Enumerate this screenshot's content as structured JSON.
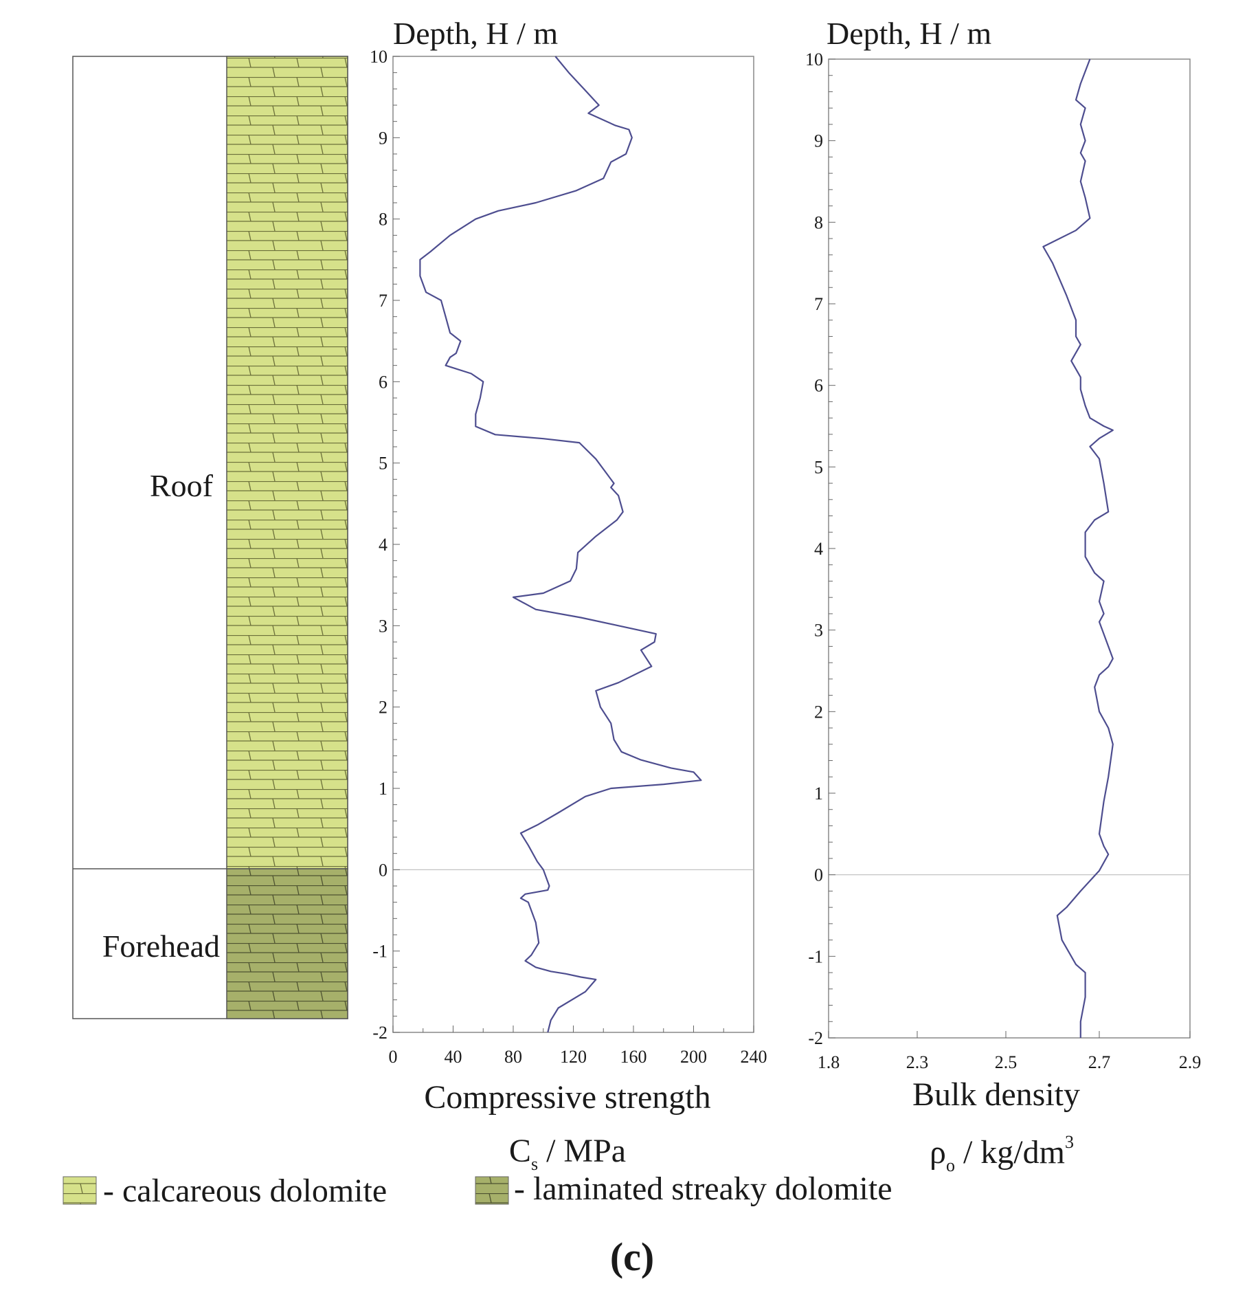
{
  "chart_data": [
    {
      "type": "line",
      "title": "",
      "ylabel": "Depth, H / m",
      "xlabel": "Compressive strength",
      "xlabel_unit": {
        "symbol": "C",
        "subscript": "s",
        "rest": " / MPa"
      },
      "xlim": [
        0,
        240
      ],
      "ylim": [
        -2,
        10
      ],
      "x_ticks": [
        0,
        40,
        80,
        120,
        160,
        200,
        240
      ],
      "y_ticks": [
        -2,
        -1,
        0,
        1,
        2,
        3,
        4,
        5,
        6,
        7,
        8,
        9,
        10
      ],
      "reference_line": 0,
      "color": "#4d4d8f",
      "series": [
        {
          "name": "Compressive strength",
          "points": [
            [
              108,
              10
            ],
            [
              117,
              9.8
            ],
            [
              127,
              9.6
            ],
            [
              137,
              9.4
            ],
            [
              130,
              9.3
            ],
            [
              148,
              9.15
            ],
            [
              157,
              9.1
            ],
            [
              159,
              9.0
            ],
            [
              155,
              8.8
            ],
            [
              145,
              8.7
            ],
            [
              140,
              8.5
            ],
            [
              122,
              8.35
            ],
            [
              95,
              8.2
            ],
            [
              70,
              8.1
            ],
            [
              55,
              8.0
            ],
            [
              38,
              7.8
            ],
            [
              25,
              7.6
            ],
            [
              18,
              7.5
            ],
            [
              18,
              7.3
            ],
            [
              22,
              7.1
            ],
            [
              32,
              7.0
            ],
            [
              35,
              6.8
            ],
            [
              38,
              6.6
            ],
            [
              45,
              6.5
            ],
            [
              42,
              6.35
            ],
            [
              38,
              6.3
            ],
            [
              35,
              6.2
            ],
            [
              52,
              6.1
            ],
            [
              60,
              6.0
            ],
            [
              58,
              5.8
            ],
            [
              55,
              5.6
            ],
            [
              55,
              5.45
            ],
            [
              68,
              5.35
            ],
            [
              100,
              5.3
            ],
            [
              124,
              5.25
            ],
            [
              135,
              5.05
            ],
            [
              143,
              4.85
            ],
            [
              147,
              4.75
            ],
            [
              145,
              4.7
            ],
            [
              150,
              4.6
            ],
            [
              153,
              4.4
            ],
            [
              149,
              4.3
            ],
            [
              135,
              4.1
            ],
            [
              123,
              3.9
            ],
            [
              122,
              3.7
            ],
            [
              118,
              3.55
            ],
            [
              100,
              3.4
            ],
            [
              80,
              3.35
            ],
            [
              95,
              3.2
            ],
            [
              125,
              3.1
            ],
            [
              150,
              3.0
            ],
            [
              175,
              2.9
            ],
            [
              174,
              2.8
            ],
            [
              165,
              2.7
            ],
            [
              172,
              2.5
            ],
            [
              150,
              2.3
            ],
            [
              135,
              2.2
            ],
            [
              138,
              2.0
            ],
            [
              145,
              1.8
            ],
            [
              147,
              1.6
            ],
            [
              152,
              1.45
            ],
            [
              165,
              1.35
            ],
            [
              185,
              1.25
            ],
            [
              200,
              1.2
            ],
            [
              205,
              1.1
            ],
            [
              180,
              1.05
            ],
            [
              145,
              1.0
            ],
            [
              128,
              0.9
            ],
            [
              110,
              0.7
            ],
            [
              96,
              0.55
            ],
            [
              85,
              0.45
            ],
            [
              90,
              0.3
            ],
            [
              96,
              0.1
            ],
            [
              100,
              0
            ],
            [
              104,
              -0.2
            ],
            [
              103,
              -0.25
            ],
            [
              88,
              -0.3
            ],
            [
              85,
              -0.35
            ],
            [
              90,
              -0.4
            ],
            [
              95,
              -0.65
            ],
            [
              97,
              -0.9
            ],
            [
              92,
              -1.05
            ],
            [
              88,
              -1.12
            ],
            [
              95,
              -1.2
            ],
            [
              105,
              -1.25
            ],
            [
              115,
              -1.28
            ],
            [
              125,
              -1.32
            ],
            [
              135,
              -1.35
            ],
            [
              128,
              -1.5
            ],
            [
              110,
              -1.7
            ],
            [
              105,
              -1.85
            ],
            [
              103,
              -2
            ]
          ]
        }
      ]
    },
    {
      "type": "line",
      "title": "",
      "ylabel": "Depth, H / m",
      "xlabel": "Bulk density",
      "xlabel_unit": {
        "symbol": "ρ",
        "subscript": "o",
        "rest": " / kg/dm",
        "superscript": "3"
      },
      "x_ticks": [
        1.8,
        2.3,
        2.5,
        2.7,
        2.9
      ],
      "ylim": [
        -2,
        10
      ],
      "y_ticks": [
        -2,
        -1,
        0,
        1,
        2,
        3,
        4,
        5,
        6,
        7,
        8,
        9,
        10
      ],
      "reference_line": 0,
      "color": "#4d4d8f",
      "series": [
        {
          "name": "Bulk density",
          "points": [
            [
              2.68,
              10
            ],
            [
              2.66,
              9.7
            ],
            [
              2.65,
              9.5
            ],
            [
              2.67,
              9.4
            ],
            [
              2.66,
              9.2
            ],
            [
              2.67,
              9.0
            ],
            [
              2.66,
              8.85
            ],
            [
              2.67,
              8.75
            ],
            [
              2.66,
              8.5
            ],
            [
              2.67,
              8.3
            ],
            [
              2.68,
              8.05
            ],
            [
              2.65,
              7.9
            ],
            [
              2.58,
              7.7
            ],
            [
              2.6,
              7.5
            ],
            [
              2.63,
              7.1
            ],
            [
              2.65,
              6.8
            ],
            [
              2.65,
              6.6
            ],
            [
              2.66,
              6.5
            ],
            [
              2.64,
              6.3
            ],
            [
              2.65,
              6.2
            ],
            [
              2.66,
              6.1
            ],
            [
              2.66,
              5.95
            ],
            [
              2.67,
              5.75
            ],
            [
              2.68,
              5.6
            ],
            [
              2.71,
              5.5
            ],
            [
              2.73,
              5.45
            ],
            [
              2.7,
              5.35
            ],
            [
              2.68,
              5.25
            ],
            [
              2.7,
              5.1
            ],
            [
              2.71,
              4.8
            ],
            [
              2.72,
              4.45
            ],
            [
              2.69,
              4.35
            ],
            [
              2.67,
              4.2
            ],
            [
              2.67,
              4.0
            ],
            [
              2.67,
              3.9
            ],
            [
              2.69,
              3.7
            ],
            [
              2.71,
              3.6
            ],
            [
              2.7,
              3.35
            ],
            [
              2.71,
              3.2
            ],
            [
              2.7,
              3.1
            ],
            [
              2.72,
              2.8
            ],
            [
              2.73,
              2.65
            ],
            [
              2.72,
              2.55
            ],
            [
              2.7,
              2.45
            ],
            [
              2.69,
              2.3
            ],
            [
              2.7,
              2.0
            ],
            [
              2.72,
              1.8
            ],
            [
              2.73,
              1.6
            ],
            [
              2.72,
              1.2
            ],
            [
              2.71,
              0.9
            ],
            [
              2.7,
              0.5
            ],
            [
              2.71,
              0.35
            ],
            [
              2.72,
              0.25
            ],
            [
              2.7,
              0.05
            ],
            [
              2.66,
              -0.2
            ],
            [
              2.63,
              -0.4
            ],
            [
              2.61,
              -0.5
            ],
            [
              2.62,
              -0.8
            ],
            [
              2.65,
              -1.1
            ],
            [
              2.67,
              -1.2
            ],
            [
              2.67,
              -1.5
            ],
            [
              2.66,
              -1.8
            ],
            [
              2.66,
              -2
            ]
          ]
        }
      ]
    }
  ],
  "lithology": {
    "units": [
      {
        "name": "Roof",
        "top": 10,
        "base": 0,
        "color": "#d6e18a",
        "legend": "calcareous dolomite"
      },
      {
        "name": "Forehead",
        "top": 0,
        "base": -1.8,
        "color": "#a6b06a",
        "legend": "laminated streaky dolomite"
      }
    ]
  },
  "legend": [
    {
      "text": "- calcareous dolomite",
      "color": "#d6e18a"
    },
    {
      "text": "- laminated streaky dolomite",
      "color": "#a6b06a"
    }
  ],
  "caption": "(c)"
}
